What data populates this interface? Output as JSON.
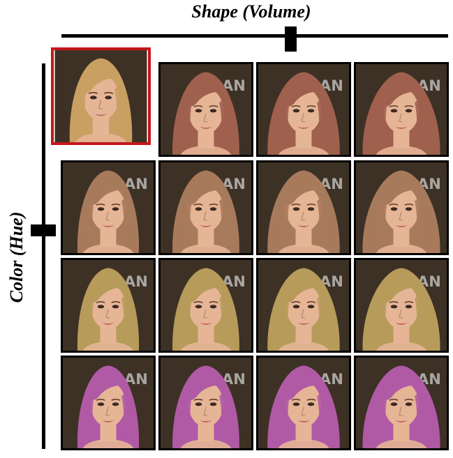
{
  "labels": {
    "shape_axis": "Shape (Volume)",
    "color_axis": "Color (Hue)"
  },
  "colors": {
    "input_frame": "#c4161c",
    "skin": "#e6b596",
    "background": "#2e231b",
    "input_hair": "#c9a062",
    "row_hair": [
      "#a0604e",
      "#a87a5c",
      "#b79b5a",
      "#b05aa6"
    ]
  },
  "grid": {
    "rows": 4,
    "cols": 4,
    "input_cell": "top-left"
  }
}
